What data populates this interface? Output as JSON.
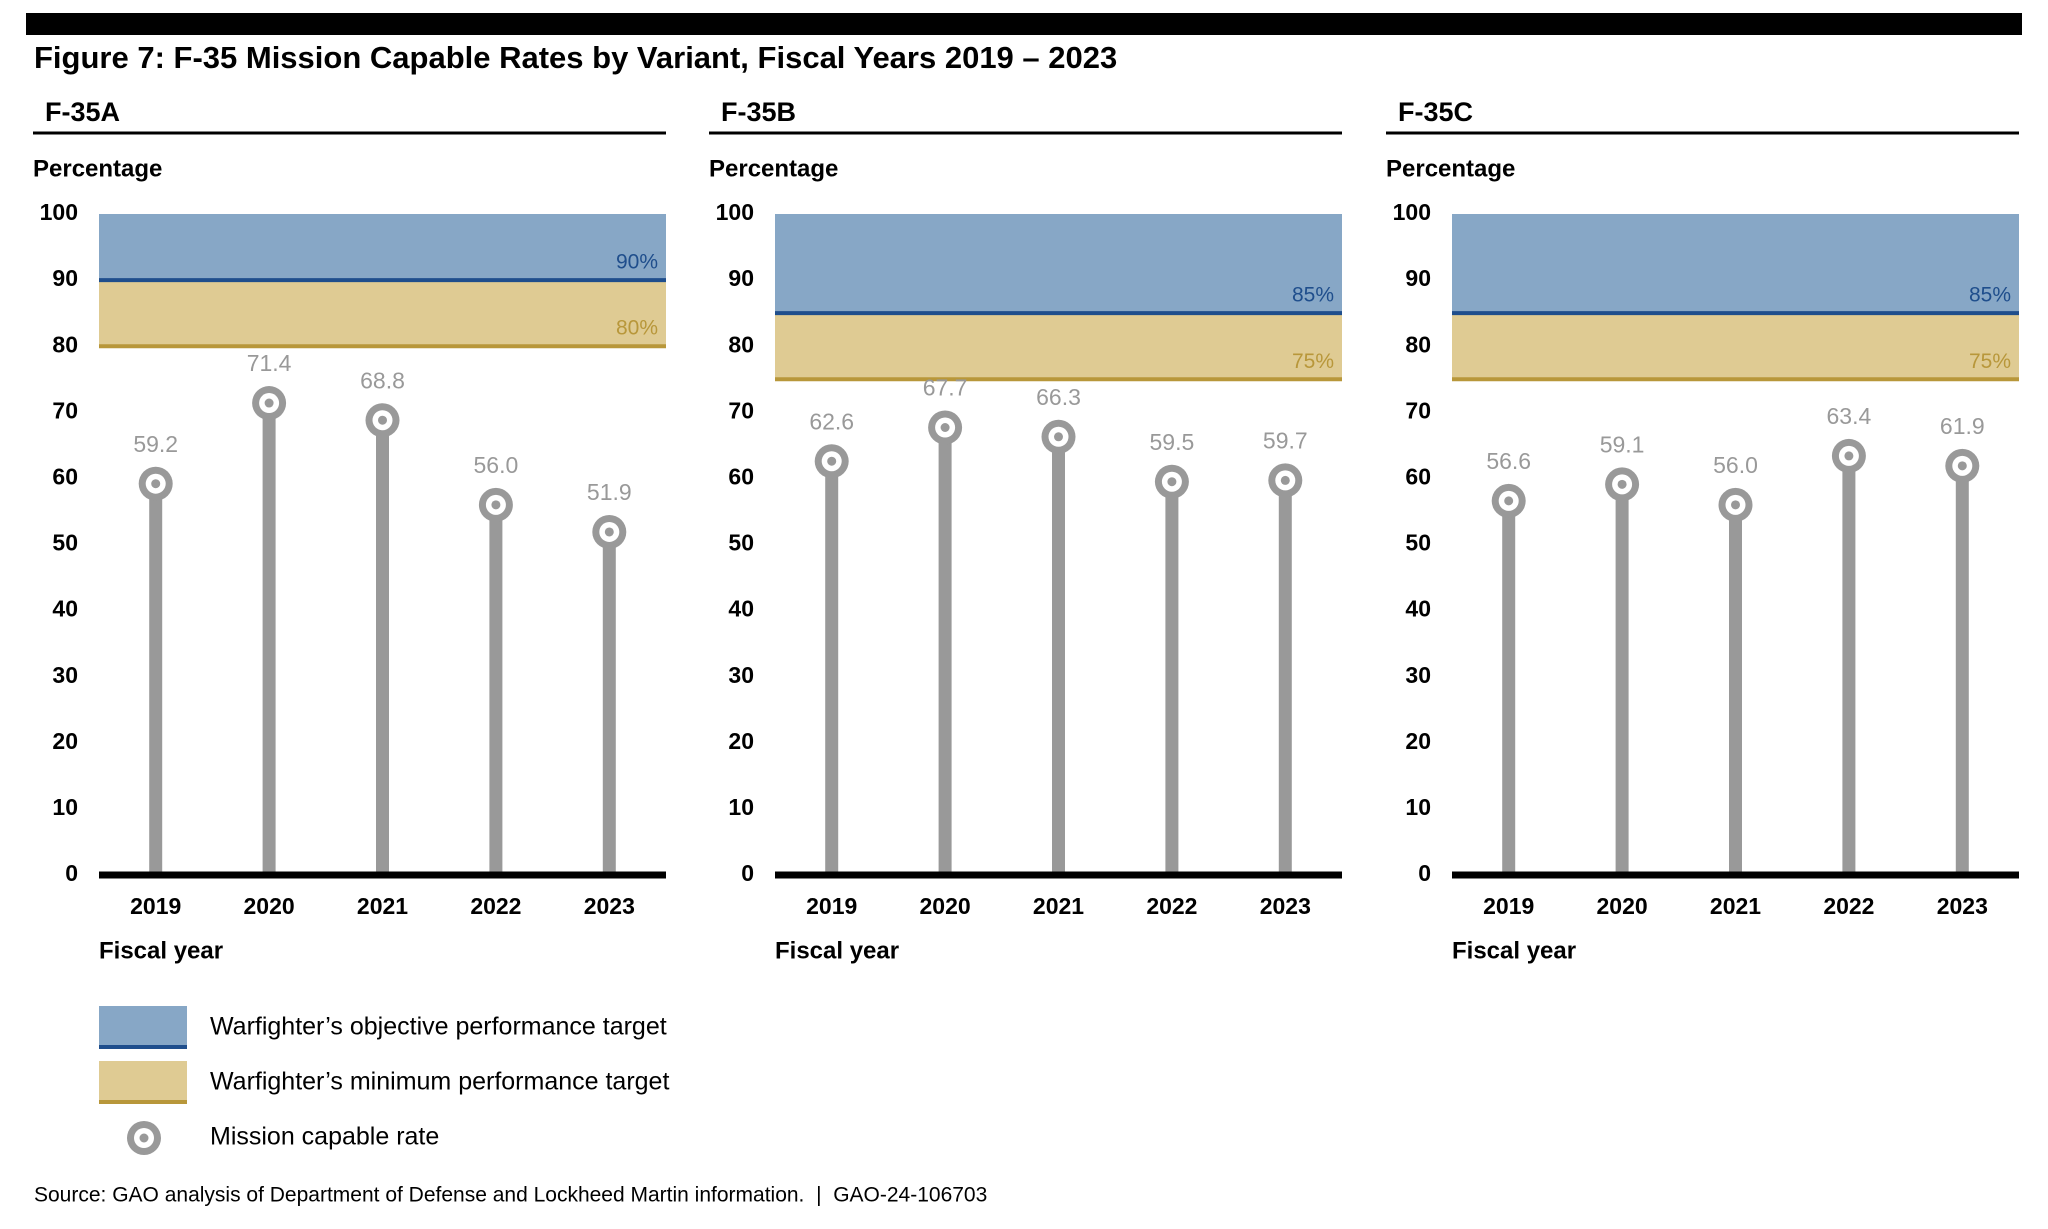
{
  "title": "Figure 7: F-35 Mission Capable Rates by Variant, Fiscal Years 2019 – 2023",
  "colors": {
    "objective_band": "#87a7c6",
    "objective_line": "#1f4e8c",
    "minimum_band": "#dfcb93",
    "minimum_line": "#b8973a",
    "marker": "#999999"
  },
  "chart_data": [
    {
      "type": "lollipop",
      "title": "F-35A",
      "y_label": "Percentage",
      "x_label": "Fiscal year",
      "categories": [
        "2019",
        "2020",
        "2021",
        "2022",
        "2023"
      ],
      "values": [
        59.2,
        71.4,
        68.8,
        56.0,
        51.9
      ],
      "value_labels": [
        "59.2",
        "71.4",
        "68.8",
        "56.0",
        "51.9"
      ],
      "objective_target": {
        "value": 90,
        "label": "90%"
      },
      "minimum_target": {
        "value": 80,
        "label": "80%"
      },
      "ylim": [
        0,
        100
      ],
      "yticks": [
        0,
        10,
        20,
        30,
        40,
        50,
        60,
        70,
        80,
        90,
        100
      ]
    },
    {
      "type": "lollipop",
      "title": "F-35B",
      "y_label": "Percentage",
      "x_label": "Fiscal year",
      "categories": [
        "2019",
        "2020",
        "2021",
        "2022",
        "2023"
      ],
      "values": [
        62.6,
        67.7,
        66.3,
        59.5,
        59.7
      ],
      "value_labels": [
        "62.6",
        "67.7",
        "66.3",
        "59.5",
        "59.7"
      ],
      "objective_target": {
        "value": 85,
        "label": "85%"
      },
      "minimum_target": {
        "value": 75,
        "label": "75%"
      },
      "ylim": [
        0,
        100
      ],
      "yticks": [
        0,
        10,
        20,
        30,
        40,
        50,
        60,
        70,
        80,
        90,
        100
      ]
    },
    {
      "type": "lollipop",
      "title": "F-35C",
      "y_label": "Percentage",
      "x_label": "Fiscal year",
      "categories": [
        "2019",
        "2020",
        "2021",
        "2022",
        "2023"
      ],
      "values": [
        56.6,
        59.1,
        56.0,
        63.4,
        61.9
      ],
      "value_labels": [
        "56.6",
        "59.1",
        "56.0",
        "63.4",
        "61.9"
      ],
      "objective_target": {
        "value": 85,
        "label": "85%"
      },
      "minimum_target": {
        "value": 75,
        "label": "75%"
      },
      "ylim": [
        0,
        100
      ],
      "yticks": [
        0,
        10,
        20,
        30,
        40,
        50,
        60,
        70,
        80,
        90,
        100
      ]
    }
  ],
  "legend": {
    "objective": "Warfighter’s objective performance target",
    "minimum": "Warfighter’s minimum performance target",
    "marker": "Mission capable rate"
  },
  "source": "Source: GAO analysis of Department of Defense and Lockheed Martin information.  |  GAO-24-106703"
}
